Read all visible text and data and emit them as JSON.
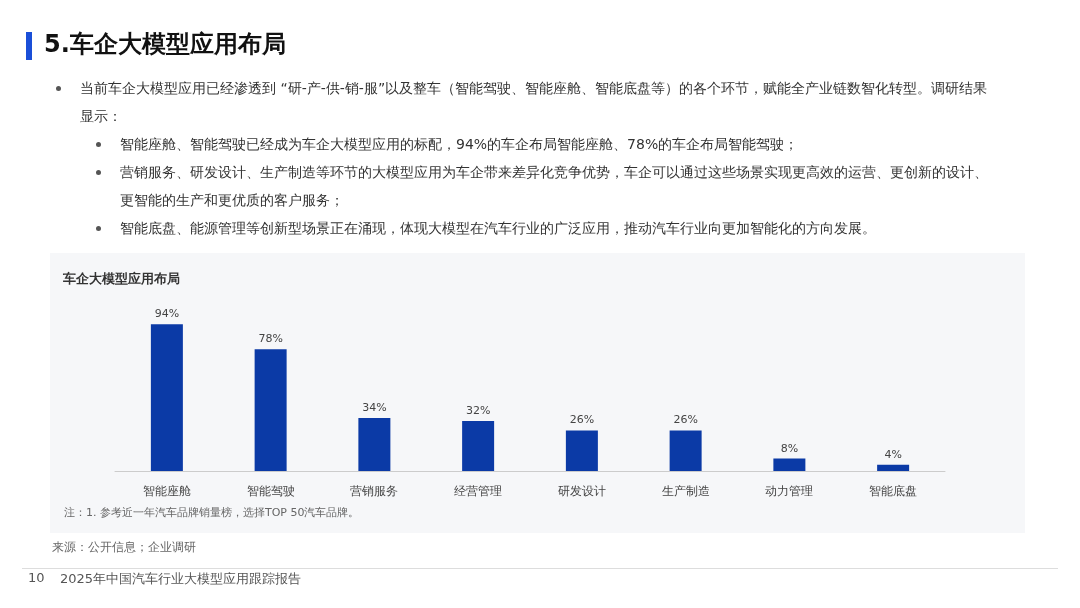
{
  "chart_data": {
    "type": "bar",
    "title": "5.车企大模型应用布局",
    "subtitle": "车企大模型应用布局",
    "categories": [
      "智能座舱",
      "智能驾驶",
      "营销服务",
      "经营管理",
      "研发设计",
      "生产制造",
      "动力管理",
      "智能底盘"
    ],
    "values": [
      94,
      78,
      34,
      32,
      26,
      26,
      8,
      4
    ],
    "value_labels": [
      "94%",
      "78%",
      "34%",
      "32%",
      "26%",
      "26%",
      "8%",
      "4%"
    ],
    "color": "#0b3aa6",
    "grid": false,
    "tick_labels": "x",
    "annotations": [
      "当前车企大模型应用已经渗透到 “研-产-供-销-服”以及整车（智能驾驶、智能座舱、智能底盘等）的各个环节，赋能全产业链数智化转型。调研结果显示：",
      "智能座舱、智能驾驶已经成为车企大模型应用的标配，94%的车企布局智能座舱、78%的车企布局智能驾驶；",
      "营销服务、研发设计、生产制造等环节的大模型应用为车企带来差异化竞争优势，车企可以通过这些场景实现更高效的运营、更创新的设计、更智能的生产和更优质的客户服务；",
      "智能底盘、能源管理等创新型场景正在涌现，体现大模型在汽车行业的广泛应用，推动汽车行业向更加智能化的方向发展。",
      "注：1. 参考近一年汽车品牌销量榜，选择TOP 50汽车品牌。",
      "来源：公开信息；企业调研",
      "10",
      "2025年中国汽车行业大模型应用跟踪报告"
    ]
  }
}
